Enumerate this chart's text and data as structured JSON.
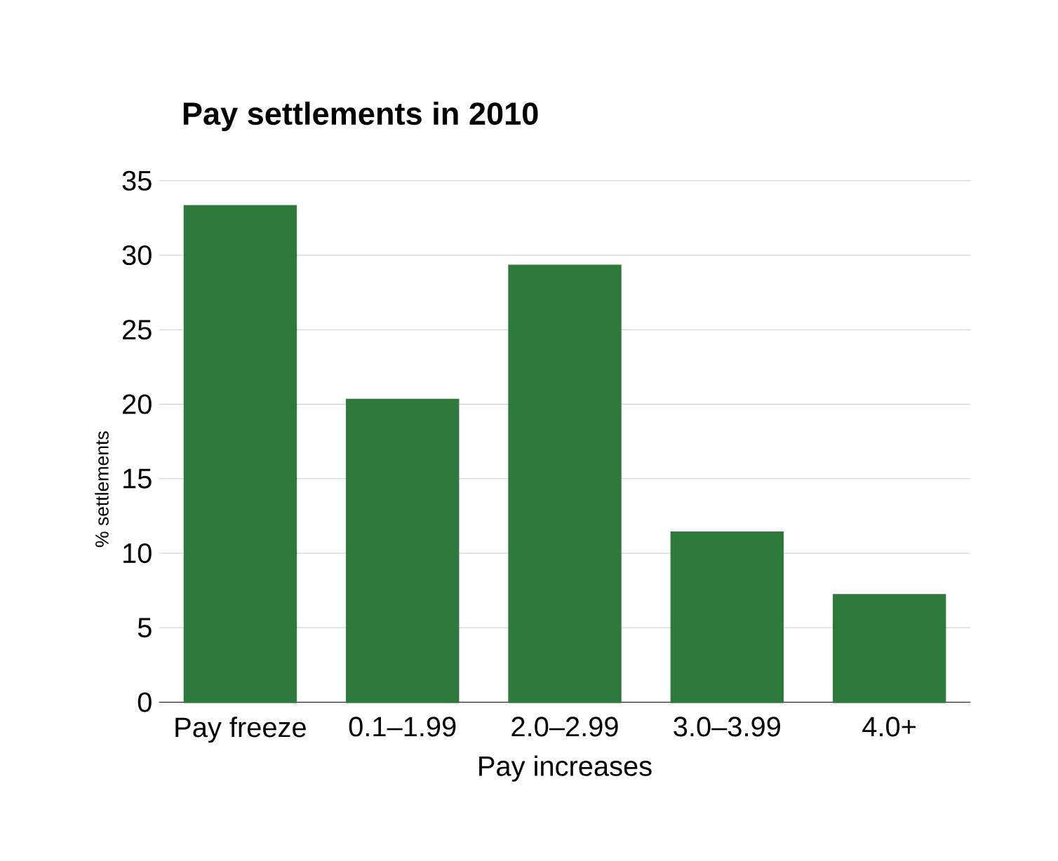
{
  "chart_data": {
    "type": "bar",
    "title": "Pay settlements in 2010",
    "xlabel": "Pay increases",
    "ylabel": "% settlements",
    "categories": [
      "Pay freeze",
      "0.1–1.99",
      "2.0–2.99",
      "3.0–3.99",
      "4.0+"
    ],
    "values": [
      33.3,
      20.3,
      29.3,
      11.4,
      7.2
    ],
    "color": "#2e7a3c",
    "ylim": [
      0,
      35
    ],
    "yticks": [
      0,
      5,
      10,
      15,
      20,
      25,
      30,
      35
    ],
    "grid": "y"
  }
}
